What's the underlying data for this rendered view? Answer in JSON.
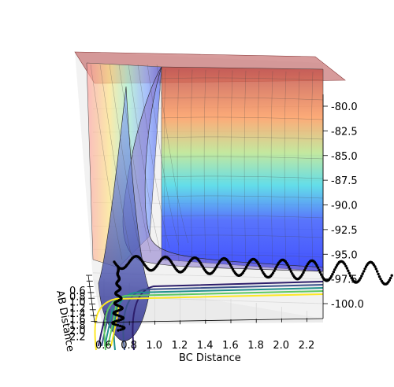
{
  "chart_data": {
    "type": "surface",
    "xlabel": "BC Distance",
    "ylabel": "AB Distance",
    "zlabel": "",
    "x_ticks": [
      "0.6",
      "0.8",
      "1.0",
      "1.2",
      "1.4",
      "1.6",
      "1.8",
      "2.0",
      "2.2"
    ],
    "y_ticks": [
      "0.6",
      "0.8",
      "1.0",
      "1.2",
      "1.4",
      "1.6",
      "1.8",
      "2.0",
      "2.2"
    ],
    "z_ticks": [
      "-80.0",
      "-82.5",
      "-85.0",
      "-87.5",
      "-90.0",
      "-92.5",
      "-95.0",
      "-97.5",
      "-100.0"
    ],
    "z_values": [
      -80.0,
      -82.5,
      -85.0,
      -87.5,
      -90.0,
      -92.5,
      -95.0,
      -97.5,
      -100.0
    ],
    "xlim": [
      0.6,
      2.2
    ],
    "ylim": [
      0.6,
      2.2
    ],
    "zlim": [
      -100.0,
      -80.0
    ],
    "surface_color_bands": [
      "#2233ff",
      "#4466ff",
      "#33d6e6",
      "#55ffe0",
      "#b8e68a",
      "#ffe08a",
      "#ff9a5a",
      "#ff6060",
      "#e07070"
    ],
    "contour_colors": [
      "#2d1e6b",
      "#3b528b",
      "#21918c",
      "#5ec962",
      "#fde725"
    ],
    "trajectory_color": "#000000",
    "grid": true
  }
}
